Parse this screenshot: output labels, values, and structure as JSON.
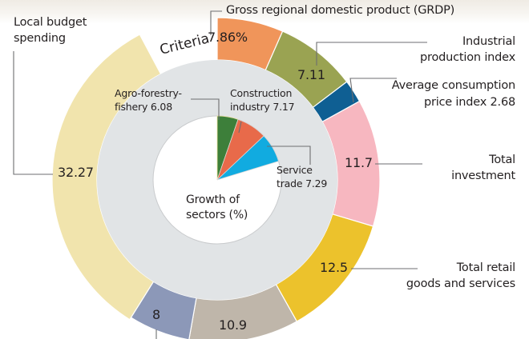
{
  "chart_data": {
    "type": "pie",
    "title": "Criteria",
    "center_label": "Growth of sectors (%)",
    "outer_ring": {
      "name": "Criteria",
      "slices": [
        {
          "label": "Gross regional domestic product (GRDP)",
          "value": 7.86,
          "value_text": "7.86%",
          "color": "#f0955a"
        },
        {
          "label": "Industrial production index",
          "value": 7.11,
          "value_text": "7.11",
          "color": "#9aa352"
        },
        {
          "label": "Average consumption price index",
          "value": 2.68,
          "value_text": "2.68",
          "color": "#0f5f93"
        },
        {
          "label": "Total investment",
          "value": 11.7,
          "value_text": "11.7",
          "color": "#f7b7c0"
        },
        {
          "label": "Total retail goods and services",
          "value": 12.5,
          "value_text": "12.5",
          "color": "#ecc22c"
        },
        {
          "label": "",
          "value": 10.9,
          "value_text": "10.9",
          "color": "#bfb6aa"
        },
        {
          "label": "",
          "value": 8,
          "value_text": "8",
          "color": "#8c98b8"
        },
        {
          "label": "Local budget spending",
          "value": 32.27,
          "value_text": "32.27",
          "color": "#f1e4ad"
        }
      ]
    },
    "middle_ring_color": "#e1e4e6",
    "inner_pie": {
      "name": "Growth of sectors (%)",
      "slices": [
        {
          "label": "Agro-forestry-fishery",
          "value": 6.08,
          "value_text": "6.08",
          "color": "#3d7f3a"
        },
        {
          "label": "Construction industry",
          "value": 7.17,
          "value_text": "7.17",
          "color": "#e86a4a"
        },
        {
          "label": "Service trade",
          "value": 7.29,
          "value_text": "7.29",
          "color": "#11abe0"
        }
      ]
    }
  },
  "labels": {
    "criteria": "Criteria",
    "grdp": "Gross regional domestic product (GRDP)",
    "industrial_1": "Industrial",
    "industrial_2": "production index",
    "acpi_1": "Average consumption",
    "acpi_2": "price index 2.68",
    "investment_1": "Total",
    "investment_2": "investment",
    "retail_1": "Total retail",
    "retail_2": "goods and services",
    "budget_1": "Local budget",
    "budget_2": "spending",
    "agro_1": "Agro-forestry-",
    "agro_2": "fishery 6.08",
    "construction_1": "Construction",
    "construction_2": "industry 7.17",
    "service_1": "Service",
    "service_2": "trade 7.29",
    "center_1": "Growth of",
    "center_2": "sectors (%)"
  }
}
